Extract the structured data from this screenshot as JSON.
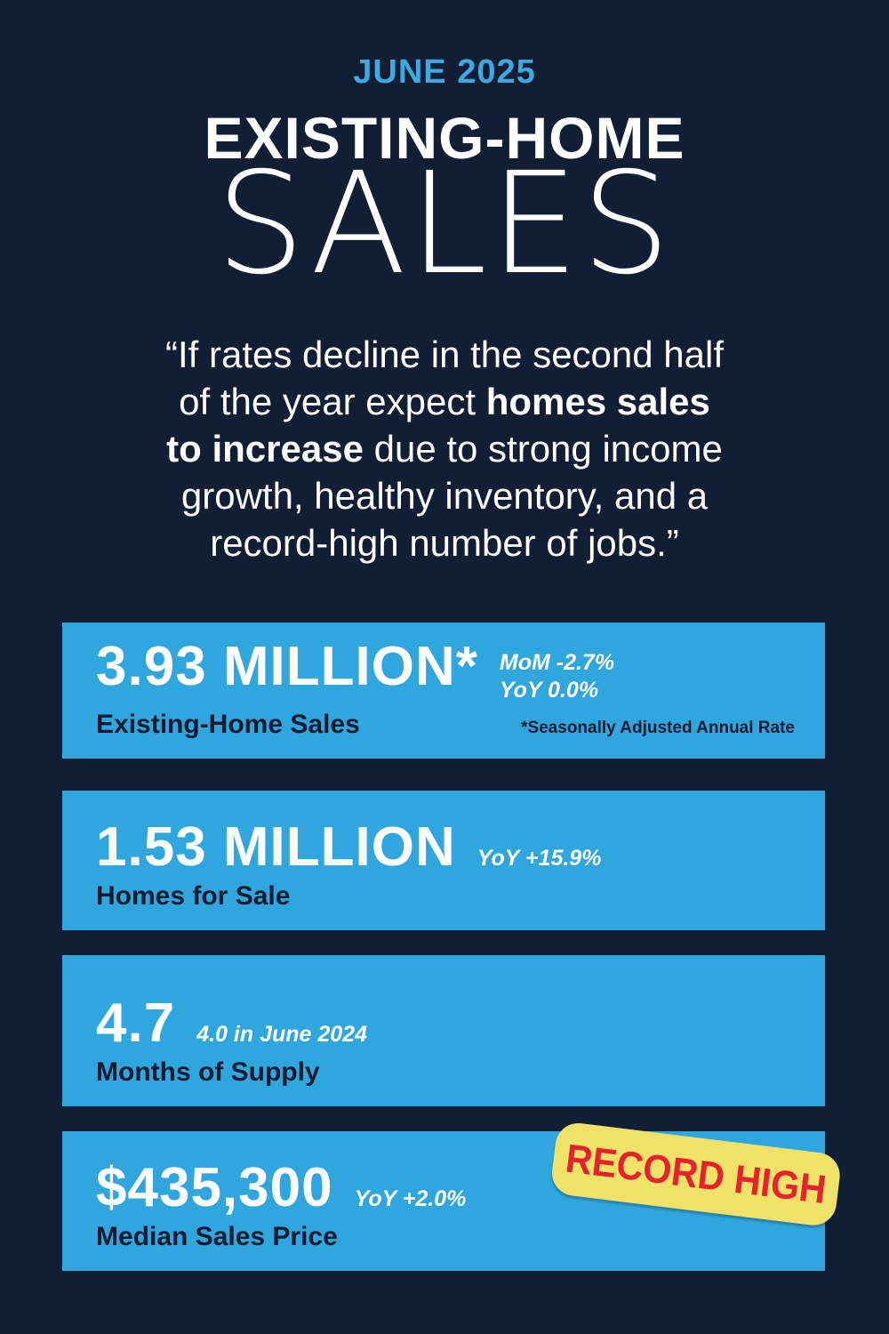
{
  "header": {
    "date_label": "JUNE 2025",
    "title_top": "EXISTING-HOME",
    "title_bottom": "SALES"
  },
  "quote": {
    "lines": [
      [
        {
          "t": "“If rates decline in the second half"
        }
      ],
      [
        {
          "t": "of the year expect "
        },
        {
          "t": "homes sales",
          "b": true
        }
      ],
      [
        {
          "t": "to increase",
          "b": true
        },
        {
          "t": " due to strong income"
        }
      ],
      [
        {
          "t": "growth, healthy inventory, and a"
        }
      ],
      [
        {
          "t": "record-high number of jobs.”"
        }
      ]
    ]
  },
  "stats": [
    {
      "value": "3.93 MILLION*",
      "label": "Existing-Home Sales",
      "change_lines": [
        "MoM -2.7%",
        "YoY 0.0%"
      ],
      "footnote": "*Seasonally Adjusted Annual Rate"
    },
    {
      "value": "1.53 MILLION",
      "label": "Homes for Sale",
      "change": "YoY +15.9%"
    },
    {
      "value": "4.7",
      "label": "Months of Supply",
      "change": "4.0 in June 2024"
    },
    {
      "value": "$435,300",
      "label": "Median Sales Price",
      "change": "YoY +2.0%",
      "badge": "RECORD HIGH"
    }
  ],
  "colors": {
    "background_navy": "#111e33",
    "panel_blue": "#2fa6de",
    "accent_blue": "#3ea8e0",
    "navy_text": "#0e1b30",
    "stamp_yellow": "#f0e269",
    "stamp_red": "#e8222d"
  }
}
